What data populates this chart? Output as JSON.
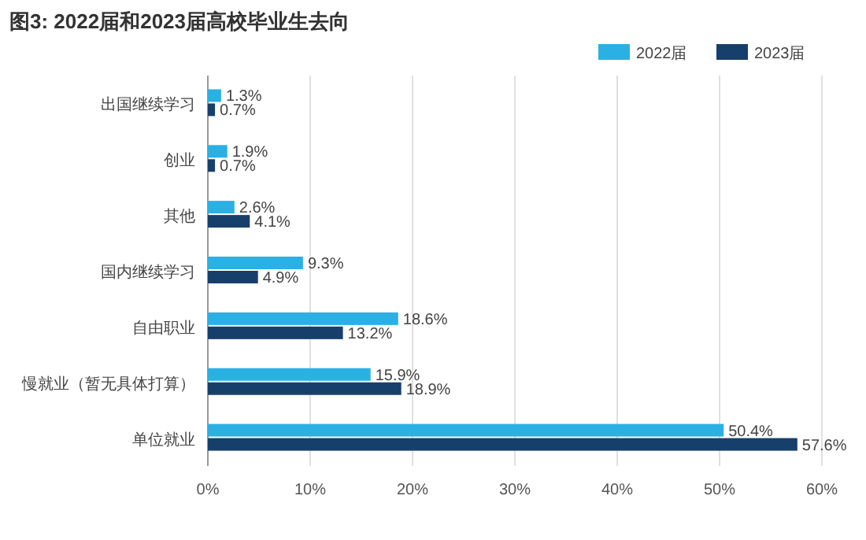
{
  "chart_data": {
    "type": "bar",
    "orientation": "horizontal",
    "title": "图3: 2022届和2023届高校毕业生去向",
    "categories": [
      "出国继续学习",
      "创业",
      "其他",
      "国内继续学习",
      "自由职业",
      "慢就业（暂无具体打算）",
      "单位就业"
    ],
    "series": [
      {
        "name": "2022届",
        "color": "#2bb0e4",
        "values": [
          1.3,
          1.9,
          2.6,
          9.3,
          18.6,
          15.9,
          50.4
        ],
        "value_labels": [
          "1.3%",
          "1.9%",
          "2.6%",
          "9.3%",
          "18.6%",
          "15.9%",
          "50.4%"
        ]
      },
      {
        "name": "2023届",
        "color": "#173f6b",
        "values": [
          0.7,
          0.7,
          4.1,
          4.9,
          13.2,
          18.9,
          57.6
        ],
        "value_labels": [
          "0.7%",
          "0.7%",
          "4.1%",
          "4.9%",
          "13.2%",
          "18.9%",
          "57.6%"
        ]
      }
    ],
    "xlim": [
      0,
      60
    ],
    "xticks": [
      {
        "value": 0,
        "label": "0%"
      },
      {
        "value": 10,
        "label": "10%"
      },
      {
        "value": 20,
        "label": "20%"
      },
      {
        "value": 30,
        "label": "30%"
      },
      {
        "value": 40,
        "label": "40%"
      },
      {
        "value": 50,
        "label": "50%"
      },
      {
        "value": 60,
        "label": "60%"
      }
    ],
    "grid": "x",
    "legend": "top right"
  }
}
